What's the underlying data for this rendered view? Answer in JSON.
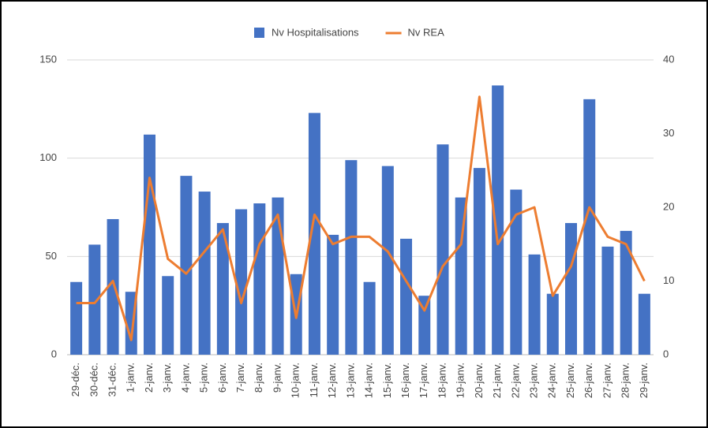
{
  "chart_data": {
    "type": "bar_line",
    "categories": [
      "29-déc.",
      "30-déc.",
      "31-déc.",
      "1-janv.",
      "2-janv.",
      "3-janv.",
      "4-janv.",
      "5-janv.",
      "6-janv.",
      "7-janv.",
      "8-janv.",
      "9-janv.",
      "10-janv.",
      "11-janv.",
      "12-janv.",
      "13-janv.",
      "14-janv.",
      "15-janv.",
      "16-janv.",
      "17-janv.",
      "18-janv.",
      "19-janv.",
      "20-janv.",
      "21-janv.",
      "22-janv.",
      "23-janv.",
      "24-janv.",
      "25-janv.",
      "26-janv.",
      "27-janv.",
      "28-janv.",
      "29-janv."
    ],
    "series": [
      {
        "name": "Nv Hospitalisations",
        "type": "bar",
        "color": "#4472c4",
        "values": [
          37,
          56,
          69,
          32,
          112,
          40,
          91,
          83,
          67,
          74,
          77,
          80,
          41,
          123,
          61,
          99,
          37,
          96,
          59,
          30,
          107,
          80,
          95,
          137,
          84,
          51,
          31,
          67,
          130,
          55,
          63,
          31
        ]
      },
      {
        "name": "Nv REA",
        "type": "line",
        "axis": "y2",
        "color": "#ed7d31",
        "values": [
          7,
          7,
          10,
          2,
          24,
          13,
          11,
          14,
          17,
          7,
          15,
          19,
          5,
          19,
          15,
          16,
          16,
          14,
          10,
          6,
          12,
          15,
          35,
          15,
          19,
          20,
          8,
          12,
          20,
          16,
          15,
          10
        ]
      }
    ],
    "ylim": [
      0,
      150
    ],
    "yticks": [
      0,
      50,
      100,
      150
    ],
    "y2lim": [
      0,
      40
    ],
    "y2ticks": [
      0,
      10,
      20,
      30,
      40
    ],
    "grid": true,
    "legend": "top"
  }
}
